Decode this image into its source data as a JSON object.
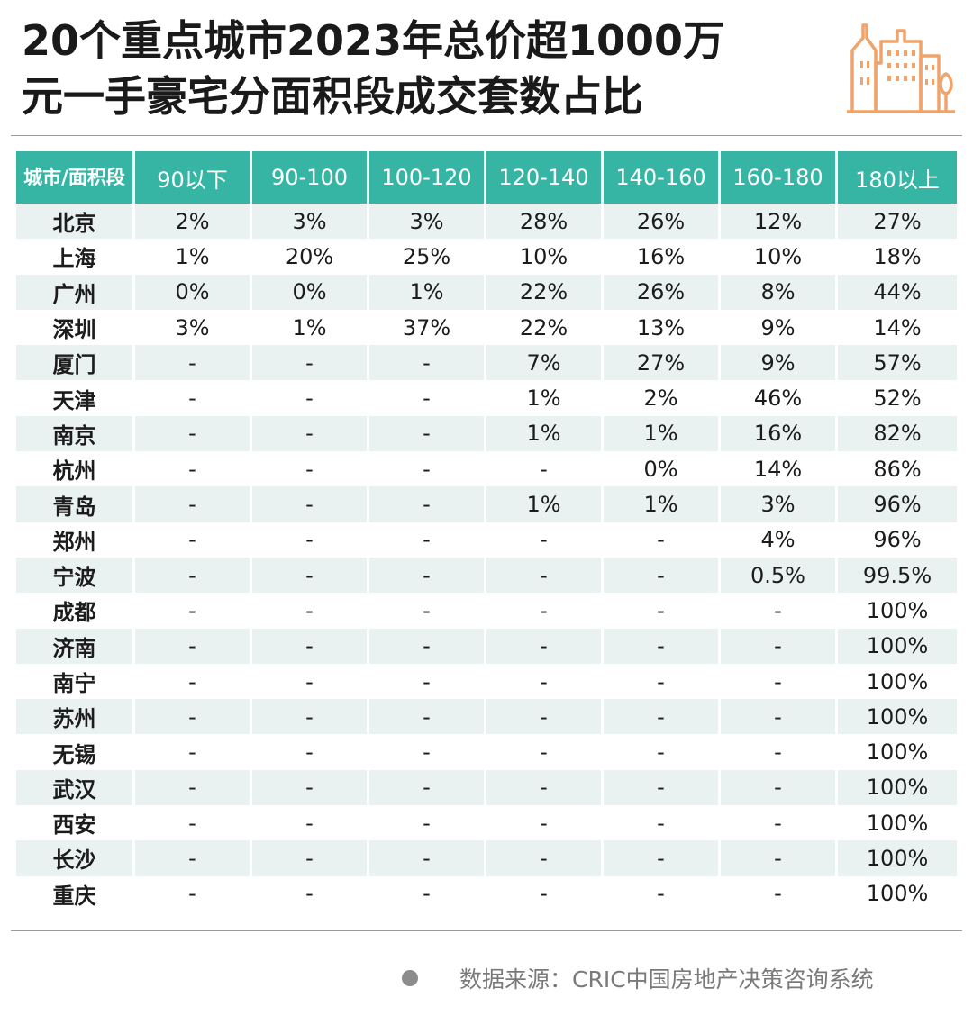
{
  "title_line1": "20个重点城市2023年总价超1000万",
  "title_line2": "元一手豪宅分面积段成交套数占比",
  "source": "数据来源：CRIC中国房地产决策咨询系统",
  "colors": {
    "header": "#36b5a4",
    "stripe": "#e9f2f1",
    "logo": "#f0a36a"
  },
  "icons": {
    "logo": "city-buildings-icon",
    "bullet": "dot-icon"
  },
  "chart_data": {
    "type": "table",
    "title": "20个重点城市2023年总价超1000万元一手豪宅分面积段成交套数占比",
    "columns": [
      "城市/面积段",
      "90以下",
      "90-100",
      "100-120",
      "120-140",
      "140-160",
      "160-180",
      "180以上"
    ],
    "rows": [
      [
        "北京",
        "2%",
        "3%",
        "3%",
        "28%",
        "26%",
        "12%",
        "27%"
      ],
      [
        "上海",
        "1%",
        "20%",
        "25%",
        "10%",
        "16%",
        "10%",
        "18%"
      ],
      [
        "广州",
        "0%",
        "0%",
        "1%",
        "22%",
        "26%",
        "8%",
        "44%"
      ],
      [
        "深圳",
        "3%",
        "1%",
        "37%",
        "22%",
        "13%",
        "9%",
        "14%"
      ],
      [
        "厦门",
        "-",
        "-",
        "-",
        "7%",
        "27%",
        "9%",
        "57%"
      ],
      [
        "天津",
        "-",
        "-",
        "-",
        "1%",
        "2%",
        "46%",
        "52%"
      ],
      [
        "南京",
        "-",
        "-",
        "-",
        "1%",
        "1%",
        "16%",
        "82%"
      ],
      [
        "杭州",
        "-",
        "-",
        "-",
        "-",
        "0%",
        "14%",
        "86%"
      ],
      [
        "青岛",
        "-",
        "-",
        "-",
        "1%",
        "1%",
        "3%",
        "96%"
      ],
      [
        "郑州",
        "-",
        "-",
        "-",
        "-",
        "-",
        "4%",
        "96%"
      ],
      [
        "宁波",
        "-",
        "-",
        "-",
        "-",
        "-",
        "0.5%",
        "99.5%"
      ],
      [
        "成都",
        "-",
        "-",
        "-",
        "-",
        "-",
        "-",
        "100%"
      ],
      [
        "济南",
        "-",
        "-",
        "-",
        "-",
        "-",
        "-",
        "100%"
      ],
      [
        "南宁",
        "-",
        "-",
        "-",
        "-",
        "-",
        "-",
        "100%"
      ],
      [
        "苏州",
        "-",
        "-",
        "-",
        "-",
        "-",
        "-",
        "100%"
      ],
      [
        "无锡",
        "-",
        "-",
        "-",
        "-",
        "-",
        "-",
        "100%"
      ],
      [
        "武汉",
        "-",
        "-",
        "-",
        "-",
        "-",
        "-",
        "100%"
      ],
      [
        "西安",
        "-",
        "-",
        "-",
        "-",
        "-",
        "-",
        "100%"
      ],
      [
        "长沙",
        "-",
        "-",
        "-",
        "-",
        "-",
        "-",
        "100%"
      ],
      [
        "重庆",
        "-",
        "-",
        "-",
        "-",
        "-",
        "-",
        "100%"
      ]
    ]
  }
}
